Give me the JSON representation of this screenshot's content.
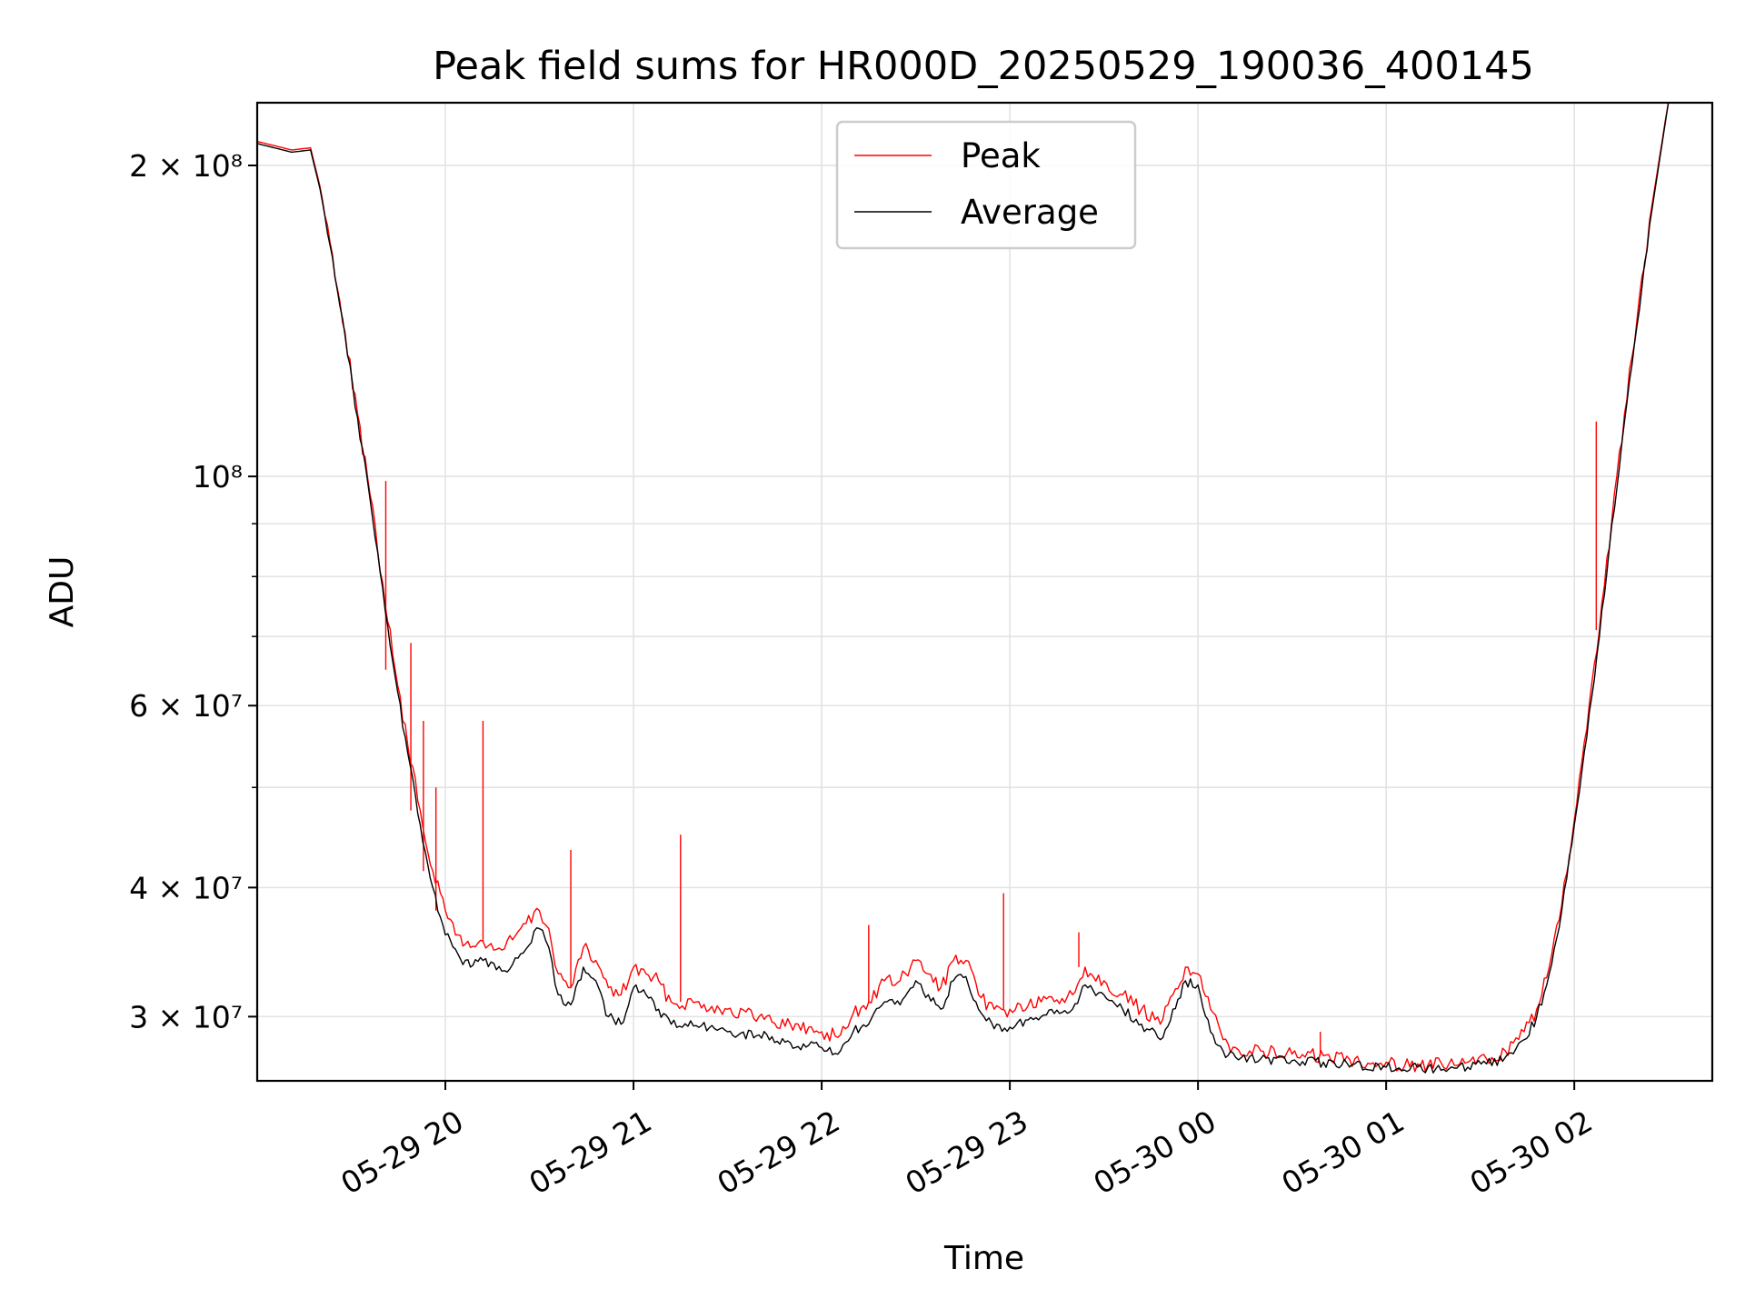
{
  "chart_data": {
    "type": "line",
    "title": "Peak field sums for HR000D_20250529_190036_400145",
    "xlabel": "Time",
    "ylabel": "ADU",
    "y_scale": "log",
    "xlim": [
      "2025-05-29 19:00",
      "2025-05-30 02:44"
    ],
    "ylim": [
      26000000,
      230000000
    ],
    "grid": true,
    "legend_position": "top-center",
    "x_ticks": [
      {
        "value": "2025-05-29 20:00",
        "label": "05-29 20"
      },
      {
        "value": "2025-05-29 21:00",
        "label": "05-29 21"
      },
      {
        "value": "2025-05-29 22:00",
        "label": "05-29 22"
      },
      {
        "value": "2025-05-29 23:00",
        "label": "05-29 23"
      },
      {
        "value": "2025-05-30 00:00",
        "label": "05-30 00"
      },
      {
        "value": "2025-05-30 01:00",
        "label": "05-30 01"
      },
      {
        "value": "2025-05-30 02:00",
        "label": "05-30 02"
      }
    ],
    "y_ticks": [
      {
        "value": 30000000,
        "label": "3 × 10⁷"
      },
      {
        "value": 40000000,
        "label": "4 × 10⁷"
      },
      {
        "value": 60000000,
        "label": "6 × 10⁷"
      },
      {
        "value": 100000000,
        "label": "10⁸"
      },
      {
        "value": 200000000,
        "label": "2 × 10⁸"
      }
    ],
    "y_minor_ticks": [
      50000000,
      70000000,
      80000000,
      90000000
    ],
    "series": [
      {
        "name": "Average",
        "color": "#000000",
        "x": [
          "2025-05-29 19:00",
          "2025-05-29 19:11",
          "2025-05-29 19:17",
          "2025-05-29 19:20",
          "2025-05-29 19:24",
          "2025-05-29 19:28",
          "2025-05-29 19:32",
          "2025-05-29 19:36",
          "2025-05-29 19:40",
          "2025-05-29 19:44",
          "2025-05-29 19:48",
          "2025-05-29 19:52",
          "2025-05-29 19:56",
          "2025-05-29 20:00",
          "2025-05-29 20:04",
          "2025-05-29 20:08",
          "2025-05-29 20:12",
          "2025-05-29 20:18",
          "2025-05-29 20:24",
          "2025-05-29 20:30",
          "2025-05-29 20:33",
          "2025-05-29 20:36",
          "2025-05-29 20:40",
          "2025-05-29 20:44",
          "2025-05-29 20:48",
          "2025-05-29 20:52",
          "2025-05-29 20:56",
          "2025-05-29 21:00",
          "2025-05-29 21:04",
          "2025-05-29 21:08",
          "2025-05-29 21:12",
          "2025-05-29 21:20",
          "2025-05-29 21:30",
          "2025-05-29 21:40",
          "2025-05-29 21:50",
          "2025-05-29 22:00",
          "2025-05-29 22:06",
          "2025-05-29 22:10",
          "2025-05-29 22:15",
          "2025-05-29 22:20",
          "2025-05-29 22:25",
          "2025-05-29 22:30",
          "2025-05-29 22:34",
          "2025-05-29 22:38",
          "2025-05-29 22:42",
          "2025-05-29 22:46",
          "2025-05-29 22:50",
          "2025-05-29 22:55",
          "2025-05-29 23:00",
          "2025-05-29 23:10",
          "2025-05-29 23:20",
          "2025-05-29 23:24",
          "2025-05-29 23:30",
          "2025-05-29 23:36",
          "2025-05-29 23:42",
          "2025-05-29 23:48",
          "2025-05-29 23:52",
          "2025-05-29 23:56",
          "2025-05-30 00:00",
          "2025-05-30 00:04",
          "2025-05-30 00:08",
          "2025-05-30 00:12",
          "2025-05-30 00:20",
          "2025-05-30 00:30",
          "2025-05-30 00:40",
          "2025-05-30 00:50",
          "2025-05-30 01:00",
          "2025-05-30 01:10",
          "2025-05-30 01:20",
          "2025-05-30 01:26",
          "2025-05-30 01:32",
          "2025-05-30 01:38",
          "2025-05-30 01:44",
          "2025-05-30 01:48",
          "2025-05-30 01:52",
          "2025-05-30 01:56",
          "2025-05-30 02:00",
          "2025-05-30 02:04",
          "2025-05-30 02:08",
          "2025-05-30 02:12",
          "2025-05-30 02:16",
          "2025-05-30 02:20",
          "2025-05-30 02:24",
          "2025-05-30 02:28",
          "2025-05-30 02:30"
        ],
        "values": [
          210000000,
          206000000,
          207000000,
          190000000,
          163000000,
          137000000,
          114000000,
          95000000,
          78000000,
          64000000,
          54000000,
          46000000,
          40000000,
          36000000,
          34500000,
          33500000,
          34000000,
          33200000,
          34500000,
          36500000,
          35000000,
          31500000,
          30800000,
          33500000,
          32500000,
          30000000,
          29500000,
          32000000,
          31500000,
          30500000,
          29500000,
          29400000,
          29000000,
          28800000,
          28300000,
          28000000,
          27800000,
          29000000,
          29500000,
          31000000,
          30800000,
          32500000,
          31500000,
          30500000,
          32500000,
          32800000,
          30500000,
          29200000,
          29300000,
          30000000,
          30500000,
          32200000,
          31500000,
          30500000,
          29500000,
          28500000,
          30500000,
          32500000,
          32200000,
          29000000,
          27800000,
          27400000,
          27300000,
          27200000,
          27100000,
          27000000,
          26800000,
          26800000,
          26700000,
          26800000,
          27000000,
          27400000,
          28500000,
          30000000,
          33000000,
          38000000,
          46000000,
          56000000,
          70000000,
          90000000,
          113000000,
          140000000,
          175000000,
          210000000,
          230000000
        ]
      },
      {
        "name": "Peak",
        "color": "#ff0000",
        "x": [
          "2025-05-29 19:00",
          "2025-05-29 19:11",
          "2025-05-29 19:17",
          "2025-05-29 19:20",
          "2025-05-29 19:24",
          "2025-05-29 19:28",
          "2025-05-29 19:32",
          "2025-05-29 19:36",
          "2025-05-29 19:40",
          "2025-05-29 19:44",
          "2025-05-29 19:48",
          "2025-05-29 19:52",
          "2025-05-29 19:56",
          "2025-05-29 20:00",
          "2025-05-29 20:04",
          "2025-05-29 20:08",
          "2025-05-29 20:12",
          "2025-05-29 20:18",
          "2025-05-29 20:24",
          "2025-05-29 20:30",
          "2025-05-29 20:33",
          "2025-05-29 20:36",
          "2025-05-29 20:40",
          "2025-05-29 20:44",
          "2025-05-29 20:48",
          "2025-05-29 20:52",
          "2025-05-29 20:56",
          "2025-05-29 21:00",
          "2025-05-29 21:04",
          "2025-05-29 21:08",
          "2025-05-29 21:12",
          "2025-05-29 21:20",
          "2025-05-29 21:30",
          "2025-05-29 21:40",
          "2025-05-29 21:50",
          "2025-05-29 22:00",
          "2025-05-29 22:06",
          "2025-05-29 22:10",
          "2025-05-29 22:15",
          "2025-05-29 22:20",
          "2025-05-29 22:25",
          "2025-05-29 22:30",
          "2025-05-29 22:34",
          "2025-05-29 22:38",
          "2025-05-29 22:42",
          "2025-05-29 22:46",
          "2025-05-29 22:50",
          "2025-05-29 22:55",
          "2025-05-29 23:00",
          "2025-05-29 23:10",
          "2025-05-29 23:20",
          "2025-05-29 23:24",
          "2025-05-29 23:30",
          "2025-05-29 23:36",
          "2025-05-29 23:42",
          "2025-05-29 23:48",
          "2025-05-29 23:52",
          "2025-05-29 23:56",
          "2025-05-30 00:00",
          "2025-05-30 00:04",
          "2025-05-30 00:08",
          "2025-05-30 00:12",
          "2025-05-30 00:20",
          "2025-05-30 00:30",
          "2025-05-30 00:40",
          "2025-05-30 00:50",
          "2025-05-30 01:00",
          "2025-05-30 01:10",
          "2025-05-30 01:20",
          "2025-05-30 01:26",
          "2025-05-30 01:32",
          "2025-05-30 01:38",
          "2025-05-30 01:44",
          "2025-05-30 01:48",
          "2025-05-30 01:52",
          "2025-05-30 01:56",
          "2025-05-30 02:00",
          "2025-05-30 02:04",
          "2025-05-30 02:08",
          "2025-05-30 02:12",
          "2025-05-30 02:16",
          "2025-05-30 02:20",
          "2025-05-30 02:24",
          "2025-05-30 02:28",
          "2025-05-30 02:30"
        ],
        "values": [
          211000000,
          207000000,
          208000000,
          191000000,
          164000000,
          138000000,
          115000000,
          96000000,
          79000000,
          65000000,
          55000000,
          47500000,
          41500000,
          38000000,
          36000000,
          35000000,
          35500000,
          34800000,
          36500000,
          38000000,
          36500000,
          33000000,
          32000000,
          35000000,
          34000000,
          32000000,
          31500000,
          33500000,
          33000000,
          32500000,
          31000000,
          31000000,
          30500000,
          30000000,
          29500000,
          29000000,
          28800000,
          30200000,
          31000000,
          32500000,
          32500000,
          34000000,
          33000000,
          32000000,
          34000000,
          34000000,
          31500000,
          30500000,
          30500000,
          31000000,
          31500000,
          33500000,
          32500000,
          31500000,
          30500000,
          29500000,
          31500000,
          33500000,
          33000000,
          30500000,
          28500000,
          28000000,
          27800000,
          27600000,
          27500000,
          27300000,
          27100000,
          27000000,
          27000000,
          27100000,
          27300000,
          27800000,
          29000000,
          30500000,
          33500000,
          38500000,
          46500000,
          57000000,
          71000000,
          91000000,
          115000000,
          142000000,
          177000000,
          211000000,
          231000000
        ]
      }
    ],
    "peak_spikes": [
      {
        "x": "2025-05-29 19:41",
        "value": 99000000
      },
      {
        "x": "2025-05-29 19:49",
        "value": 69000000
      },
      {
        "x": "2025-05-29 19:53",
        "value": 58000000
      },
      {
        "x": "2025-05-29 19:57",
        "value": 50000000
      },
      {
        "x": "2025-05-29 20:12",
        "value": 58000000
      },
      {
        "x": "2025-05-29 20:40",
        "value": 43500000
      },
      {
        "x": "2025-05-29 21:15",
        "value": 45000000
      },
      {
        "x": "2025-05-29 22:15",
        "value": 36800000
      },
      {
        "x": "2025-05-29 22:58",
        "value": 39500000
      },
      {
        "x": "2025-05-29 23:22",
        "value": 36200000
      },
      {
        "x": "2025-05-30 00:39",
        "value": 29000000
      },
      {
        "x": "2025-05-30 02:07",
        "value": 113000000
      }
    ]
  }
}
